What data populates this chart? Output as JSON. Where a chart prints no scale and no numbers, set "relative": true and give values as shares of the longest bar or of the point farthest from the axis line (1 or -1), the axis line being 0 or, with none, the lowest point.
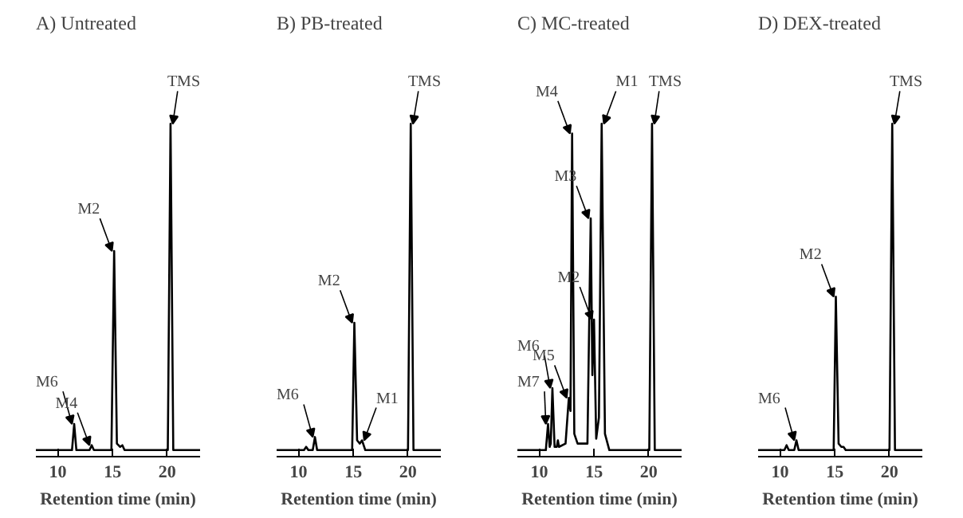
{
  "chart_data": [
    {
      "type": "line",
      "title": "A)  Untreated",
      "xlabel": "Retention time (min)",
      "relative": true,
      "xlim": [
        8,
        23
      ],
      "xticks": [
        10,
        15,
        20
      ],
      "grid": false,
      "marker": "none",
      "line_style": "solid",
      "series": [
        {
          "color": "#000000",
          "x": [
            8,
            11.3,
            11.5,
            11.7,
            12.9,
            13.1,
            13.3,
            14.9,
            15.15,
            15.4,
            15.7,
            15.9,
            16.1,
            20.05,
            20.3,
            20.55,
            23
          ],
          "values": [
            0,
            0,
            0.08,
            0,
            0,
            0.015,
            0,
            0,
            0.61,
            0.02,
            0.01,
            0.015,
            0,
            0,
            1,
            0,
            0
          ]
        }
      ],
      "annotations": [
        {
          "text": "M6",
          "x": 11.5,
          "y": 0.08
        },
        {
          "text": "M4",
          "x": 13.1,
          "y": 0.015
        },
        {
          "text": "M2",
          "x": 15.15,
          "y": 0.61
        },
        {
          "text": "TMS",
          "x": 20.3,
          "y": 1
        }
      ]
    },
    {
      "type": "line",
      "title": "B) PB-treated",
      "xlabel": "Retention time (min)",
      "relative": true,
      "xlim": [
        8,
        23
      ],
      "xticks": [
        10,
        15,
        20
      ],
      "grid": false,
      "marker": "none",
      "line_style": "solid",
      "series": [
        {
          "color": "#000000",
          "x": [
            8,
            10.5,
            10.7,
            10.9,
            11.3,
            11.5,
            11.7,
            14.9,
            15.1,
            15.35,
            15.6,
            15.8,
            16.1,
            20.0,
            20.25,
            20.5,
            23
          ],
          "values": [
            0,
            0,
            0.01,
            0,
            0,
            0.04,
            0,
            0,
            0.39,
            0.03,
            0.02,
            0.03,
            0,
            0,
            1,
            0,
            0
          ]
        }
      ],
      "annotations": [
        {
          "text": "M6",
          "x": 11.5,
          "y": 0.04
        },
        {
          "text": "M2",
          "x": 15.1,
          "y": 0.39
        },
        {
          "text": "M1",
          "x": 15.8,
          "y": 0.03
        },
        {
          "text": "TMS",
          "x": 20.25,
          "y": 1
        }
      ]
    },
    {
      "type": "line",
      "title": "C) MC-treated",
      "xlabel": "Retention time (min)",
      "relative": true,
      "xlim": [
        8,
        23
      ],
      "xticks": [
        10,
        15,
        20
      ],
      "grid": false,
      "marker": "none",
      "line_style": "solid",
      "series": [
        {
          "color": "#000000",
          "x": [
            8,
            10.6,
            10.8,
            10.95,
            11.05,
            11.2,
            11.4,
            11.6,
            11.7,
            11.8,
            12.4,
            12.7,
            12.85,
            13.0,
            13.2,
            13.5,
            14.4,
            14.7,
            14.85,
            15.0,
            15.2,
            15.45,
            15.7,
            16.0,
            16.4,
            20.05,
            20.3,
            20.55,
            23
          ],
          "values": [
            0,
            0,
            0.08,
            0.01,
            0.02,
            0.19,
            0.01,
            0.01,
            0.03,
            0.01,
            0.02,
            0.16,
            0.12,
            0.97,
            0.05,
            0.02,
            0.02,
            0.71,
            0.23,
            0.4,
            0.035,
            0.1,
            1.0,
            0.05,
            0,
            0,
            1.0,
            0,
            0
          ]
        }
      ],
      "annotations": [
        {
          "text": "M7",
          "x": 10.8,
          "y": 0.08
        },
        {
          "text": "M6",
          "x": 11.2,
          "y": 0.19
        },
        {
          "text": "M5",
          "x": 12.7,
          "y": 0.16
        },
        {
          "text": "M4",
          "x": 13.0,
          "y": 0.97
        },
        {
          "text": "M3",
          "x": 14.7,
          "y": 0.71
        },
        {
          "text": "M2",
          "x": 15.0,
          "y": 0.4
        },
        {
          "text": "M1",
          "x": 15.7,
          "y": 1.0
        },
        {
          "text": "TMS",
          "x": 20.3,
          "y": 1.0
        }
      ]
    },
    {
      "type": "line",
      "title": "D) DEX-treated",
      "xlabel": "Retention time (min)",
      "relative": true,
      "xlim": [
        8,
        23
      ],
      "xticks": [
        10,
        15,
        20
      ],
      "grid": false,
      "marker": "none",
      "line_style": "solid",
      "series": [
        {
          "color": "#000000",
          "x": [
            8,
            10.4,
            10.6,
            10.8,
            11.3,
            11.5,
            11.7,
            14.9,
            15.1,
            15.35,
            15.6,
            15.8,
            16.0,
            20.0,
            20.25,
            20.5,
            23
          ],
          "values": [
            0,
            0,
            0.015,
            0,
            0,
            0.03,
            0,
            0,
            0.47,
            0.02,
            0.01,
            0.01,
            0,
            0,
            1,
            0,
            0
          ]
        }
      ],
      "annotations": [
        {
          "text": "M6",
          "x": 11.5,
          "y": 0.03
        },
        {
          "text": "M2",
          "x": 15.1,
          "y": 0.47
        },
        {
          "text": "TMS",
          "x": 20.25,
          "y": 1
        }
      ]
    }
  ]
}
